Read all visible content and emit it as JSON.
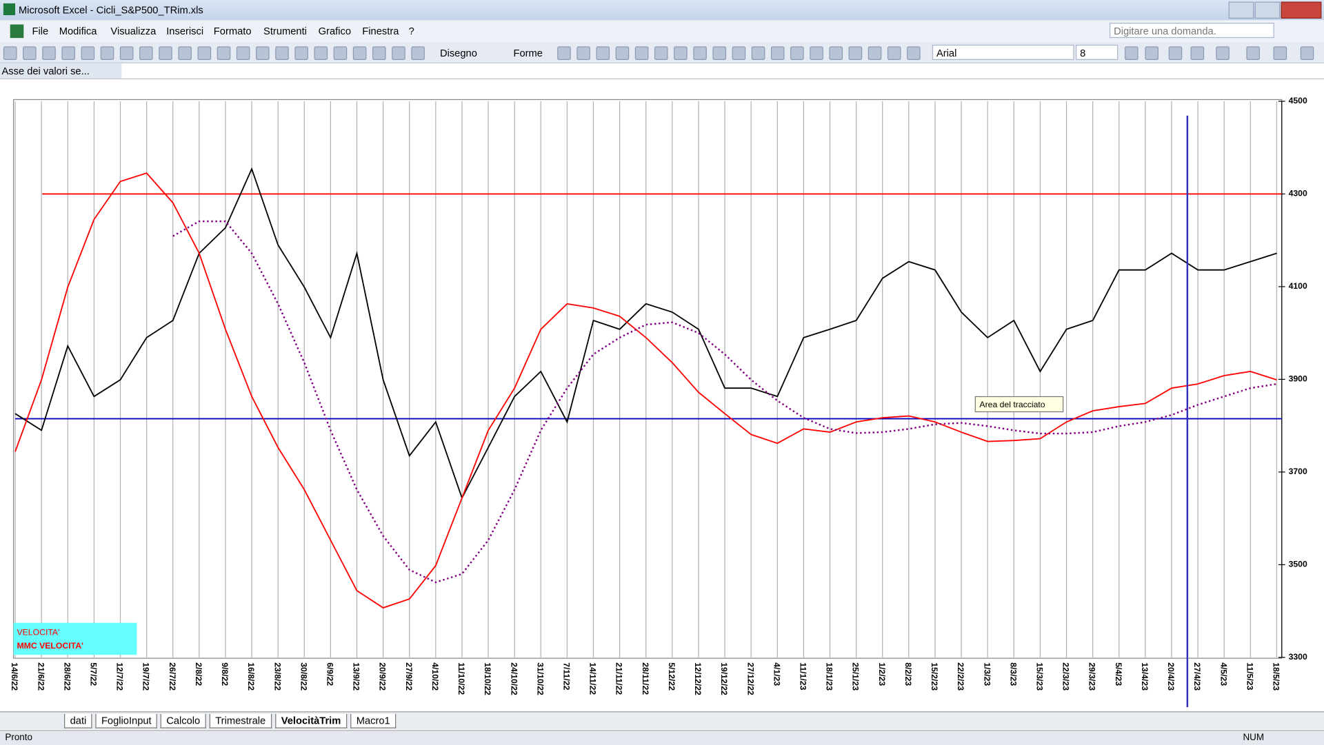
{
  "window": {
    "title": "Microsoft Excel - Cicli_S&P500_TRim.xls"
  },
  "menu": [
    "File",
    "Modifica",
    "Visualizza",
    "Inserisci",
    "Formato",
    "Strumenti",
    "Grafico",
    "Finestra",
    "?"
  ],
  "help_box": "Digitare una domanda.",
  "toolbar": {
    "draw": "Disegno",
    "shapes": "Forme",
    "font": "Arial",
    "size": "8"
  },
  "name_box": "Asse dei valori se...",
  "chart_data": {
    "type": "line",
    "categories": [
      "14/6/22",
      "21/6/22",
      "28/6/22",
      "5/7/22",
      "12/7/22",
      "19/7/22",
      "26/7/22",
      "2/8/22",
      "9/8/22",
      "16/8/22",
      "23/8/22",
      "30/8/22",
      "6/9/22",
      "13/9/22",
      "20/9/22",
      "27/9/22",
      "4/10/22",
      "11/10/22",
      "18/10/22",
      "24/10/22",
      "31/10/22",
      "7/11/22",
      "14/11/22",
      "21/11/22",
      "28/11/22",
      "5/12/22",
      "12/12/22",
      "19/12/22",
      "27/12/22",
      "4/1/23",
      "11/1/23",
      "18/1/23",
      "25/1/23",
      "1/2/23",
      "8/2/23",
      "15/2/23",
      "22/2/23",
      "1/3/23",
      "8/3/23",
      "15/3/23",
      "22/3/23",
      "29/3/23",
      "5/4/23",
      "13/4/23",
      "20/4/23",
      "27/4/23",
      "4/5/23",
      "11/5/23",
      "18/5/23"
    ],
    "series": [
      {
        "color": "#000000",
        "style": "solid",
        "values": [
          3826,
          3790,
          3972,
          3863,
          3899,
          3990,
          4027,
          4172,
          4227,
          4354,
          4190,
          4099,
          3990,
          4172,
          3899,
          3735,
          3808,
          3644,
          3753,
          3863,
          3917,
          3808,
          4027,
          4008,
          4063,
          4045,
          4008,
          3881,
          3881,
          3863,
          3990,
          4008,
          4027,
          4118,
          4154,
          4136,
          4045,
          3990,
          4027,
          3917,
          4008,
          4027,
          4136,
          4136,
          4172,
          4136,
          4136,
          4154,
          4172
        ]
      },
      {
        "name": "VELOCITA'",
        "color": "#ff0000",
        "style": "solid",
        "values": [
          3744,
          3899,
          4099,
          4245,
          4327,
          4345,
          4281,
          4172,
          4008,
          3863,
          3753,
          3662,
          3553,
          3444,
          3407,
          3426,
          3498,
          3644,
          3790,
          3881,
          4008,
          4063,
          4054,
          4036,
          3990,
          3936,
          3872,
          3826,
          3781,
          3762,
          3793,
          3786,
          3808,
          3817,
          3821,
          3808,
          3786,
          3766,
          3768,
          3772,
          3808,
          3832,
          3841,
          3848,
          3881,
          3890,
          3908,
          3917,
          3899
        ]
      },
      {
        "name": "MMC VELOCITA'",
        "color": "#800080",
        "style": "dotted",
        "values": [
          null,
          null,
          null,
          null,
          null,
          null,
          4209,
          4241,
          4241,
          4172,
          4063,
          3936,
          3790,
          3662,
          3562,
          3489,
          3462,
          3480,
          3553,
          3662,
          3790,
          3881,
          3954,
          3990,
          4018,
          4023,
          4000,
          3954,
          3899,
          3854,
          3817,
          3793,
          3784,
          3786,
          3793,
          3803,
          3806,
          3799,
          3790,
          3783,
          3783,
          3786,
          3799,
          3808,
          3823,
          3845,
          3863,
          3881,
          3890
        ]
      }
    ],
    "hlines": [
      {
        "value": 4300,
        "color": "#ff0000"
      },
      {
        "value": 3815,
        "color": "#0000c0"
      }
    ],
    "vline": {
      "x": 44.6,
      "color": "#3030c0"
    },
    "ylim": [
      3300,
      4500
    ],
    "yticks": [
      3300,
      3500,
      3700,
      3900,
      4100,
      4300,
      4500
    ],
    "grid": true,
    "tooltip": "Area del tracciato"
  },
  "sheet_tabs": [
    "dati",
    "FoglioInput",
    "Calcolo",
    "Trimestrale",
    "VelocitàTrim",
    "Macro1"
  ],
  "status": {
    "left": "Pronto",
    "num": "NUM"
  }
}
